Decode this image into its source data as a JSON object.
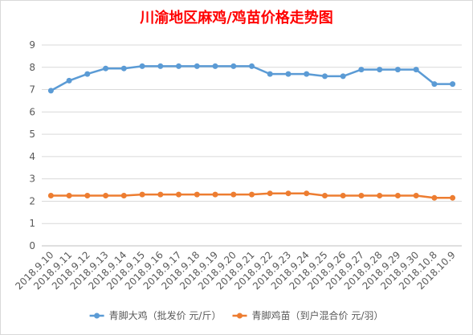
{
  "chart_data": {
    "type": "line",
    "title": "川渝地区麻鸡/鸡苗价格走势图",
    "categories": [
      "2018.9.10",
      "2018.9.11",
      "2018.9.12",
      "2018.9.13",
      "2018.9.14",
      "2018.9.15",
      "2018.9.16",
      "2018.9.17",
      "2018.9.18",
      "2018.9.19",
      "2018.9.20",
      "2018.9.21",
      "2018.9.22",
      "2018.9.23",
      "2018.9.24",
      "2018.9.25",
      "2018.9.26",
      "2018.9.27",
      "2018.9.28",
      "2018.9.29",
      "2018.9.30",
      "2018.10.8",
      "2018.10.9"
    ],
    "yticks": [
      0,
      1,
      2,
      3,
      4,
      5,
      6,
      7,
      8,
      9
    ],
    "ylim": [
      0,
      9
    ],
    "grid": "horizontal",
    "legend": "bottom",
    "series": [
      {
        "name": "青脚大鸡（批发价 元/斤）",
        "color": "#5B9BD5",
        "values": [
          6.95,
          7.4,
          7.7,
          7.95,
          7.95,
          8.05,
          8.05,
          8.05,
          8.05,
          8.05,
          8.05,
          8.05,
          7.7,
          7.7,
          7.7,
          7.6,
          7.6,
          7.9,
          7.9,
          7.9,
          7.9,
          7.25,
          7.25
        ]
      },
      {
        "name": "青脚鸡苗（到户混合价 元/羽）",
        "color": "#ED7D31",
        "values": [
          2.25,
          2.25,
          2.25,
          2.25,
          2.25,
          2.3,
          2.3,
          2.3,
          2.3,
          2.3,
          2.3,
          2.3,
          2.35,
          2.35,
          2.35,
          2.25,
          2.25,
          2.25,
          2.25,
          2.25,
          2.25,
          2.15,
          2.15
        ]
      }
    ]
  },
  "colors": {
    "title": "#FF0000",
    "grid": "#D9D9D9",
    "axis": "#BFBFBF",
    "text": "#595959",
    "border": "#D9D9D9"
  }
}
